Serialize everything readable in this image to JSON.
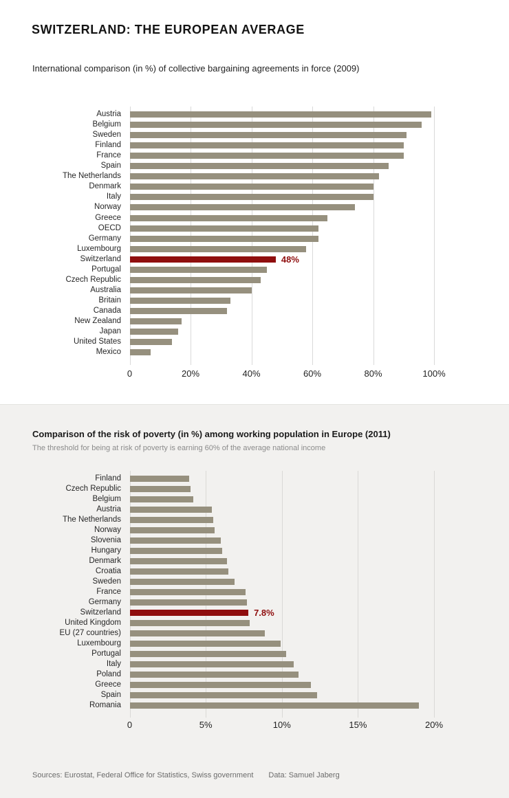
{
  "page": {
    "title": "SWITZERLAND: THE EUROPEAN AVERAGE",
    "footer": {
      "sources": "Sources: Eurostat, Federal Office for Statistics, Swiss government",
      "data_credit": "Data: Samuel Jaberg"
    }
  },
  "colors": {
    "bar": "#96907e",
    "highlight": "#8f0e0e",
    "section_bg": "#f2f1ef"
  },
  "chart_data": [
    {
      "type": "bar",
      "orientation": "horizontal",
      "title": "International comparison (in %) of collective bargaining agreements in force (2009)",
      "subtitle": "",
      "xlim": [
        0,
        100
      ],
      "x_ticks": [
        "0",
        "20%",
        "40%",
        "60%",
        "80%",
        "100%"
      ],
      "x_tick_values": [
        0,
        20,
        40,
        60,
        80,
        100
      ],
      "grid": true,
      "legend": "none",
      "highlight_category": "Switzerland",
      "highlight_label": "48%",
      "categories": [
        "Austria",
        "Belgium",
        "Sweden",
        "Finland",
        "France",
        "Spain",
        "The Netherlands",
        "Denmark",
        "Italy",
        "Norway",
        "Greece",
        "OECD",
        "Germany",
        "Luxembourg",
        "Switzerland",
        "Portugal",
        "Czech Republic",
        "Australia",
        "Britain",
        "Canada",
        "New Zealand",
        "Japan",
        "United States",
        "Mexico"
      ],
      "values": [
        99,
        96,
        91,
        90,
        90,
        85,
        82,
        80,
        80,
        74,
        65,
        62,
        62,
        58,
        48,
        45,
        43,
        40,
        33,
        32,
        17,
        16,
        14,
        7
      ]
    },
    {
      "type": "bar",
      "orientation": "horizontal",
      "title": "Comparison of the risk of poverty (in %) among working population in Europe (2011)",
      "subtitle": "The threshold for being at risk of poverty is earning 60% of the average national income",
      "xlim": [
        0,
        20
      ],
      "x_ticks": [
        "0",
        "5%",
        "10%",
        "15%",
        "20%"
      ],
      "x_tick_values": [
        0,
        5,
        10,
        15,
        20
      ],
      "grid": true,
      "legend": "none",
      "highlight_category": "Switzerland",
      "highlight_label": "7.8%",
      "categories": [
        "Finland",
        "Czech Republic",
        "Belgium",
        "Austria",
        "The Netherlands",
        "Norway",
        "Slovenia",
        "Hungary",
        "Denmark",
        "Croatia",
        "Sweden",
        "France",
        "Germany",
        "Switzerland",
        "United Kingdom",
        "EU (27 countries)",
        "Luxembourg",
        "Portugal",
        "Italy",
        "Poland",
        "Greece",
        "Spain",
        "Romania"
      ],
      "values": [
        3.9,
        4.0,
        4.2,
        5.4,
        5.5,
        5.6,
        6.0,
        6.1,
        6.4,
        6.5,
        6.9,
        7.6,
        7.7,
        7.8,
        7.9,
        8.9,
        9.9,
        10.3,
        10.8,
        11.1,
        11.9,
        12.3,
        19.0
      ]
    }
  ]
}
